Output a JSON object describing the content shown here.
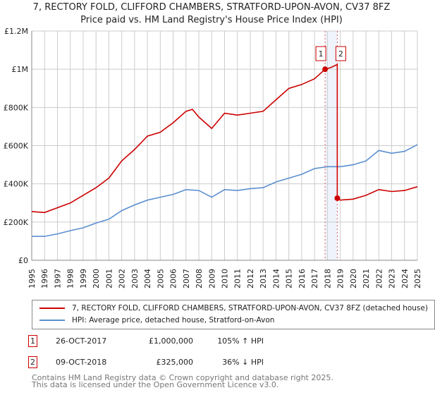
{
  "header": {
    "title_line1": "7, RECTORY FOLD, CLIFFORD CHAMBERS, STRATFORD-UPON-AVON, CV37 8FZ",
    "title_line2": "Price paid vs. HM Land Registry's House Price Index (HPI)"
  },
  "chart_data": {
    "type": "line",
    "xlim": [
      1995,
      2025
    ],
    "ylim": [
      0,
      1200000
    ],
    "yticks": [
      {
        "v": 0,
        "label": "£0"
      },
      {
        "v": 200000,
        "label": "£200K"
      },
      {
        "v": 400000,
        "label": "£400K"
      },
      {
        "v": 600000,
        "label": "£600K"
      },
      {
        "v": 800000,
        "label": "£800K"
      },
      {
        "v": 1000000,
        "label": "£1M"
      },
      {
        "v": 1200000,
        "label": "£1.2M"
      }
    ],
    "xticks": [
      "1995",
      "1996",
      "1997",
      "1998",
      "1999",
      "2000",
      "2001",
      "2002",
      "2003",
      "2004",
      "2005",
      "2006",
      "2007",
      "2008",
      "2009",
      "2010",
      "2011",
      "2012",
      "2013",
      "2014",
      "2015",
      "2016",
      "2017",
      "2018",
      "2019",
      "2020",
      "2021",
      "2022",
      "2023",
      "2024",
      "2025"
    ],
    "series": [
      {
        "name": "7, RECTORY FOLD, CLIFFORD CHAMBERS, STRATFORD-UPON-AVON, CV37 8FZ (detached house)",
        "color": "#cc0000",
        "x": [
          1995,
          1996,
          1997,
          1998,
          1999,
          2000,
          2001,
          2002,
          2003,
          2004,
          2005,
          2006,
          2007,
          2007.5,
          2008,
          2009,
          2010,
          2011,
          2012,
          2013,
          2014,
          2015,
          2016,
          2017,
          2017.82,
          2018.3,
          2018.77,
          2018.77,
          2019,
          2020,
          2021,
          2022,
          2023,
          2024,
          2025
        ],
        "y": [
          255000,
          250000,
          275000,
          300000,
          340000,
          380000,
          430000,
          520000,
          580000,
          650000,
          670000,
          720000,
          780000,
          790000,
          750000,
          690000,
          770000,
          760000,
          770000,
          780000,
          840000,
          900000,
          920000,
          950000,
          1000000,
          1010000,
          1025000,
          325000,
          315000,
          320000,
          340000,
          370000,
          360000,
          365000,
          385000
        ]
      },
      {
        "name": "HPI: Average price, detached house, Stratford-on-Avon",
        "color": "#5b8fd0",
        "x": [
          1995,
          1996,
          1997,
          1998,
          1999,
          2000,
          2001,
          2002,
          2003,
          2004,
          2005,
          2006,
          2007,
          2008,
          2009,
          2010,
          2011,
          2012,
          2013,
          2014,
          2015,
          2016,
          2017,
          2018,
          2019,
          2020,
          2021,
          2022,
          2023,
          2024,
          2025
        ],
        "y": [
          125000,
          125000,
          138000,
          155000,
          170000,
          195000,
          215000,
          260000,
          290000,
          315000,
          330000,
          345000,
          370000,
          365000,
          330000,
          370000,
          365000,
          375000,
          380000,
          410000,
          430000,
          450000,
          480000,
          490000,
          490000,
          500000,
          520000,
          575000,
          560000,
          570000,
          605000
        ]
      }
    ],
    "sales": [
      {
        "id": "1",
        "date": "26-OCT-2017",
        "x": 2017.82,
        "price": "£1,000,000",
        "value": 1000000,
        "hpi": "105% ↑ HPI"
      },
      {
        "id": "2",
        "date": "09-OCT-2018",
        "x": 2018.77,
        "price": "£325,000",
        "value": 325000,
        "hpi": "36% ↓ HPI"
      }
    ]
  },
  "legend": {
    "red": "7, RECTORY FOLD, CLIFFORD CHAMBERS, STRATFORD-UPON-AVON, CV37 8FZ (detached house)",
    "blue": "HPI: Average price, detached house, Stratford-on-Avon"
  },
  "footer": {
    "line1": "Contains HM Land Registry data © Crown copyright and database right 2025.",
    "line2": "This data is licensed under the Open Government Licence v3.0."
  }
}
